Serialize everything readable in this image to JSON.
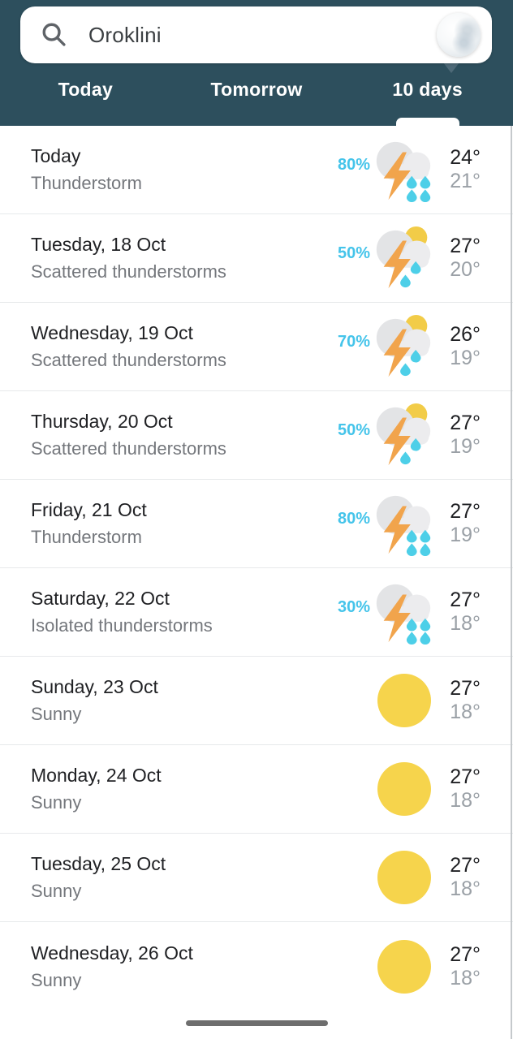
{
  "search": {
    "query": "Oroklini",
    "icon": "search-icon",
    "thumbnail": "earth-satellite-thumbnail"
  },
  "tabs": [
    {
      "label": "Today",
      "active": false
    },
    {
      "label": "Tomorrow",
      "active": false
    },
    {
      "label": "10 days",
      "active": true
    }
  ],
  "forecast": {
    "rows": [
      {
        "day": "Today",
        "condition": "Thunderstorm",
        "precip": "80%",
        "icon": "thunderstorm",
        "high": "24°",
        "low": "21°"
      },
      {
        "day": "Tuesday, 18 Oct",
        "condition": "Scattered thunderstorms",
        "precip": "50%",
        "icon": "scattered-thunderstorms",
        "high": "27°",
        "low": "20°"
      },
      {
        "day": "Wednesday, 19 Oct",
        "condition": "Scattered thunderstorms",
        "precip": "70%",
        "icon": "scattered-thunderstorms",
        "high": "26°",
        "low": "19°"
      },
      {
        "day": "Thursday, 20 Oct",
        "condition": "Scattered thunderstorms",
        "precip": "50%",
        "icon": "scattered-thunderstorms",
        "high": "27°",
        "low": "19°"
      },
      {
        "day": "Friday, 21 Oct",
        "condition": "Thunderstorm",
        "precip": "80%",
        "icon": "thunderstorm",
        "high": "27°",
        "low": "19°"
      },
      {
        "day": "Saturday, 22 Oct",
        "condition": "Isolated thunderstorms",
        "precip": "30%",
        "icon": "thunderstorm",
        "high": "27°",
        "low": "18°"
      },
      {
        "day": "Sunday, 23 Oct",
        "condition": "Sunny",
        "precip": "",
        "icon": "sunny",
        "high": "27°",
        "low": "18°"
      },
      {
        "day": "Monday, 24 Oct",
        "condition": "Sunny",
        "precip": "",
        "icon": "sunny",
        "high": "27°",
        "low": "18°"
      },
      {
        "day": "Tuesday, 25 Oct",
        "condition": "Sunny",
        "precip": "",
        "icon": "sunny",
        "high": "27°",
        "low": "18°"
      },
      {
        "day": "Wednesday, 26 Oct",
        "condition": "Sunny",
        "precip": "",
        "icon": "sunny",
        "high": "27°",
        "low": "18°"
      }
    ]
  },
  "colors": {
    "header_teal": "#2d4f5d",
    "precip_cyan": "#45c4ea",
    "drop_cyan": "#4dcfe8",
    "bolt_orange": "#f1a44c",
    "sun_yellow": "#f6d44c",
    "title_dark": "#202124",
    "subtle_gray": "#74777c",
    "low_gray": "#9aa0a6",
    "divider": "#e7e9eb"
  }
}
